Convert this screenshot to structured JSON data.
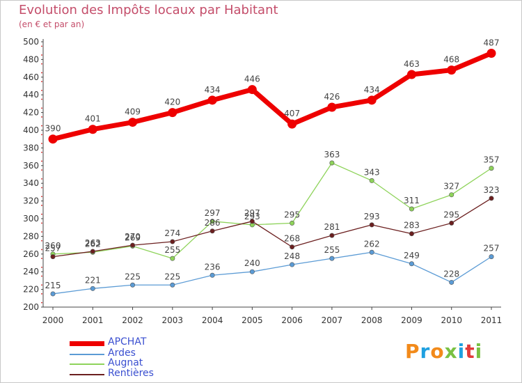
{
  "header": {
    "title": "Evolution des Impôts locaux par Habitant",
    "subtitle": "(en € et par an)"
  },
  "brand": {
    "text": "Proxiti",
    "colors": [
      "#f28a1a",
      "#1fa0e0",
      "#f28a1a",
      "#7ac143",
      "#1fa0e0",
      "#e23b3b",
      "#7ac143"
    ]
  },
  "chart_data": {
    "type": "line",
    "title": "Evolution des Impôts locaux par Habitant",
    "subtitle": "(en € et par an)",
    "xlabel": "",
    "ylabel": "",
    "ylim": [
      200,
      500
    ],
    "ytick_step": 20,
    "grid": false,
    "legend_position": "bottom-left",
    "categories": [
      "2000",
      "2001",
      "2002",
      "2003",
      "2004",
      "2005",
      "2006",
      "2007",
      "2008",
      "2009",
      "2010",
      "2011"
    ],
    "series": [
      {
        "name": "APCHAT",
        "color": "#ee0000",
        "values": [
          390,
          401,
          409,
          420,
          434,
          446,
          407,
          426,
          434,
          463,
          468,
          487
        ]
      },
      {
        "name": "Ardes",
        "color": "#5b9bd5",
        "values": [
          215,
          221,
          225,
          225,
          236,
          240,
          248,
          255,
          262,
          249,
          228,
          257
        ]
      },
      {
        "name": "Augnat",
        "color": "#8ed35a",
        "values": [
          260,
          262,
          269,
          255,
          297,
          293,
          295,
          363,
          343,
          311,
          327,
          357
        ]
      },
      {
        "name": "Rentières",
        "color": "#6b1f1f",
        "values": [
          257,
          263,
          270,
          274,
          286,
          297,
          268,
          281,
          293,
          283,
          295,
          323
        ]
      }
    ]
  }
}
